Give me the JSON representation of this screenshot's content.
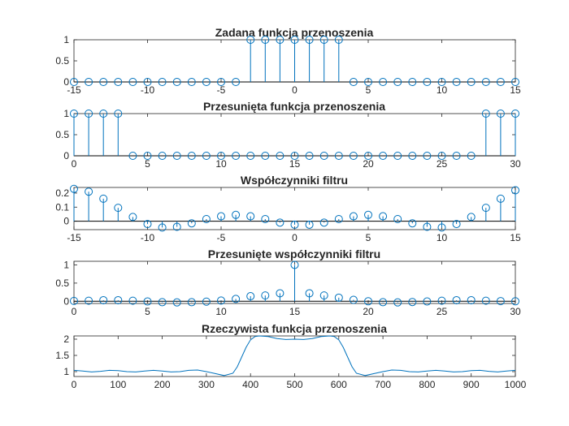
{
  "colors": {
    "series": "#0072bd",
    "axis": "#262626",
    "background": "#ffffff"
  },
  "chart_data": [
    {
      "type": "stem",
      "title": "Zadana funkcja przenoszenia",
      "xlabel": "",
      "ylabel": "",
      "xlim": [
        -15,
        15
      ],
      "ylim": [
        0,
        1
      ],
      "xticks": [
        -15,
        -10,
        -5,
        0,
        5,
        10,
        15
      ],
      "yticks": [
        0,
        0.5,
        1
      ],
      "grid": false,
      "x": [
        -15,
        -14,
        -13,
        -12,
        -11,
        -10,
        -9,
        -8,
        -7,
        -6,
        -5,
        -4,
        -3,
        -2,
        -1,
        0,
        1,
        2,
        3,
        4,
        5,
        6,
        7,
        8,
        9,
        10,
        11,
        12,
        13,
        14,
        15
      ],
      "y": [
        0,
        0,
        0,
        0,
        0,
        0,
        0,
        0,
        0,
        0,
        0,
        0,
        1,
        1,
        1,
        1,
        1,
        1,
        1,
        0,
        0,
        0,
        0,
        0,
        0,
        0,
        0,
        0,
        0,
        0,
        0
      ]
    },
    {
      "type": "stem",
      "title": "Przesunięta funkcja przenoszenia",
      "xlabel": "",
      "ylabel": "",
      "xlim": [
        0,
        30
      ],
      "ylim": [
        0,
        1
      ],
      "xticks": [
        0,
        5,
        10,
        15,
        20,
        25,
        30
      ],
      "yticks": [
        0,
        0.5,
        1
      ],
      "grid": false,
      "x": [
        0,
        1,
        2,
        3,
        4,
        5,
        6,
        7,
        8,
        9,
        10,
        11,
        12,
        13,
        14,
        15,
        16,
        17,
        18,
        19,
        20,
        21,
        22,
        23,
        24,
        25,
        26,
        27,
        28,
        29,
        30
      ],
      "y": [
        1,
        1,
        1,
        1,
        0,
        0,
        0,
        0,
        0,
        0,
        0,
        0,
        0,
        0,
        0,
        0,
        0,
        0,
        0,
        0,
        0,
        0,
        0,
        0,
        0,
        0,
        0,
        0,
        1,
        1,
        1
      ]
    },
    {
      "type": "stem",
      "title": "Współczynniki filtru",
      "xlabel": "",
      "ylabel": "",
      "xlim": [
        -15,
        15
      ],
      "ylim": [
        -0.06,
        0.24
      ],
      "xticks": [
        -15,
        -10,
        -5,
        0,
        5,
        10,
        15
      ],
      "yticks": [
        0,
        0.1,
        0.2
      ],
      "grid": false,
      "x": [
        -15,
        -14,
        -13,
        -12,
        -11,
        -10,
        -9,
        -8,
        -7,
        -6,
        -5,
        -4,
        -3,
        -2,
        -1,
        0,
        1,
        2,
        3,
        4,
        5,
        6,
        7,
        8,
        9,
        10,
        11,
        12,
        13,
        14,
        15
      ],
      "y": [
        0.23,
        0.21,
        0.16,
        0.095,
        0.03,
        -0.02,
        -0.045,
        -0.04,
        -0.015,
        0.015,
        0.035,
        0.045,
        0.035,
        0.015,
        -0.01,
        -0.025,
        -0.025,
        -0.01,
        0.015,
        0.035,
        0.045,
        0.035,
        0.015,
        -0.015,
        -0.04,
        -0.045,
        -0.02,
        0.03,
        0.095,
        0.16,
        0.22
      ]
    },
    {
      "type": "stem",
      "title": "Przesunięte współczynniki filtru",
      "xlabel": "",
      "ylabel": "",
      "xlim": [
        0,
        30
      ],
      "ylim": [
        -0.06,
        1.1
      ],
      "xticks": [
        0,
        5,
        10,
        15,
        20,
        25,
        30
      ],
      "yticks": [
        0,
        0.5,
        1
      ],
      "grid": false,
      "x": [
        0,
        1,
        2,
        3,
        4,
        5,
        6,
        7,
        8,
        9,
        10,
        11,
        12,
        13,
        14,
        15,
        16,
        17,
        18,
        19,
        20,
        21,
        22,
        23,
        24,
        25,
        26,
        27,
        28,
        29,
        30
      ],
      "y": [
        0.01,
        0.015,
        0.03,
        0.03,
        0.015,
        -0.005,
        -0.025,
        -0.03,
        -0.025,
        -0.01,
        0.02,
        0.065,
        0.14,
        0.16,
        0.22,
        1.0,
        0.22,
        0.16,
        0.1,
        0.04,
        0.0,
        -0.025,
        -0.03,
        -0.02,
        -0.005,
        0.015,
        0.03,
        0.03,
        0.015,
        0.005,
        0.0
      ]
    },
    {
      "type": "line",
      "title": "Rzeczywista funkcja przenoszenia",
      "xlabel": "",
      "ylabel": "",
      "xlim": [
        0,
        1000
      ],
      "ylim": [
        0.85,
        2.1
      ],
      "xticks": [
        0,
        100,
        200,
        300,
        400,
        500,
        600,
        700,
        800,
        900,
        1000
      ],
      "yticks": [
        1,
        1.5,
        2
      ],
      "grid": false,
      "x": [
        0,
        20,
        40,
        60,
        80,
        100,
        120,
        140,
        160,
        180,
        200,
        220,
        240,
        260,
        280,
        300,
        320,
        340,
        360,
        370,
        380,
        390,
        400,
        410,
        420,
        440,
        460,
        480,
        500,
        520,
        540,
        560,
        580,
        590,
        600,
        610,
        620,
        630,
        640,
        660,
        680,
        700,
        720,
        740,
        760,
        780,
        800,
        820,
        840,
        860,
        880,
        900,
        920,
        940,
        960,
        980,
        1000
      ],
      "y": [
        1.04,
        1.02,
        0.99,
        1.01,
        1.04,
        1.03,
        1.0,
        0.99,
        1.02,
        1.04,
        1.02,
        0.99,
        1.0,
        1.04,
        1.05,
        1.0,
        0.94,
        0.88,
        0.95,
        1.15,
        1.45,
        1.75,
        1.98,
        2.08,
        2.1,
        2.08,
        2.02,
        1.99,
        2.0,
        1.99,
        2.02,
        2.08,
        2.1,
        2.08,
        1.98,
        1.75,
        1.45,
        1.15,
        0.95,
        0.88,
        0.94,
        1.0,
        1.05,
        1.04,
        1.0,
        0.99,
        1.02,
        1.04,
        1.02,
        0.99,
        1.0,
        1.03,
        1.04,
        1.01,
        0.99,
        1.02,
        1.04
      ]
    }
  ]
}
